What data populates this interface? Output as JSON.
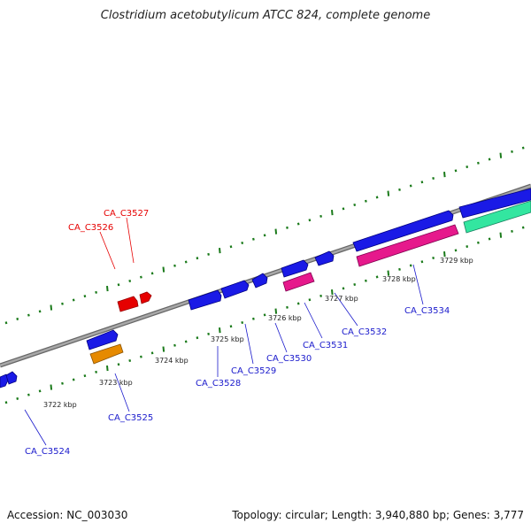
{
  "title": "Clostridium acetobutylicum ATCC 824, complete genome",
  "footer": {
    "accession": "Accession: NC_003030",
    "topology": "Topology: circular; Length: 3,940,880 bp; Genes: 3,777"
  },
  "colors": {
    "backbone": "#8a8a8a",
    "ticks": "#1a7a1a",
    "blue_gene": "#1a1ae6",
    "red_gene": "#e60000",
    "orange_gene": "#e68a00",
    "pink_gene": "#e6198c",
    "teal_gene": "#33e6a0",
    "blue_label": "#1a1acc",
    "red_label": "#e60000"
  },
  "tick_labels": [
    "3722 kbp",
    "3723 kbp",
    "3724 kbp",
    "3725 kbp",
    "3726 kbp",
    "3727 kbp",
    "3728 kbp",
    "3729 kbp"
  ],
  "gene_labels": [
    {
      "text": "CA_C3524",
      "color": "blue"
    },
    {
      "text": "CA_C3525",
      "color": "blue"
    },
    {
      "text": "CA_C3526",
      "color": "red"
    },
    {
      "text": "CA_C3527",
      "color": "red"
    },
    {
      "text": "CA_C3528",
      "color": "blue"
    },
    {
      "text": "CA_C3529",
      "color": "blue"
    },
    {
      "text": "CA_C3530",
      "color": "blue"
    },
    {
      "text": "CA_C3531",
      "color": "blue"
    },
    {
      "text": "CA_C3532",
      "color": "blue"
    },
    {
      "text": "CA_C3534",
      "color": "blue"
    }
  ]
}
